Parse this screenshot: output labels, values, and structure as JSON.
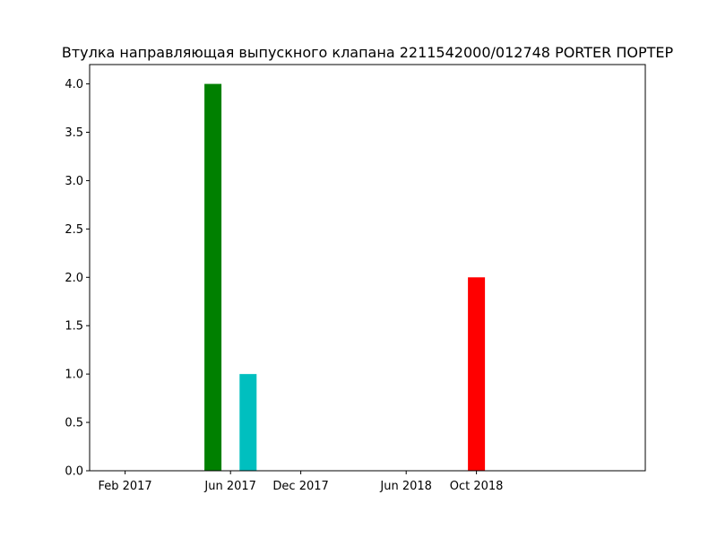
{
  "chart_data": {
    "type": "bar",
    "title": "Втулка направляющая выпускного клапана 2211542000/012748  PORTER ПОРТЕР",
    "xlabel": "",
    "ylabel": "",
    "x_ticks": [
      "Feb 2017",
      "Jun 2017",
      "Dec 2017",
      "Jun 2018",
      "Oct 2018"
    ],
    "y_ticks": [
      "0.0",
      "0.5",
      "1.0",
      "1.5",
      "2.0",
      "2.5",
      "3.0",
      "3.5",
      "4.0"
    ],
    "ylim": [
      0,
      4.2
    ],
    "grid": false,
    "bars": [
      {
        "date": "2017-07",
        "value": 4,
        "color": "#008000"
      },
      {
        "date": "2017-09",
        "value": 1,
        "color": "#00bfbf"
      },
      {
        "date": "2018-10",
        "value": 2,
        "color": "#ff0000"
      }
    ]
  }
}
